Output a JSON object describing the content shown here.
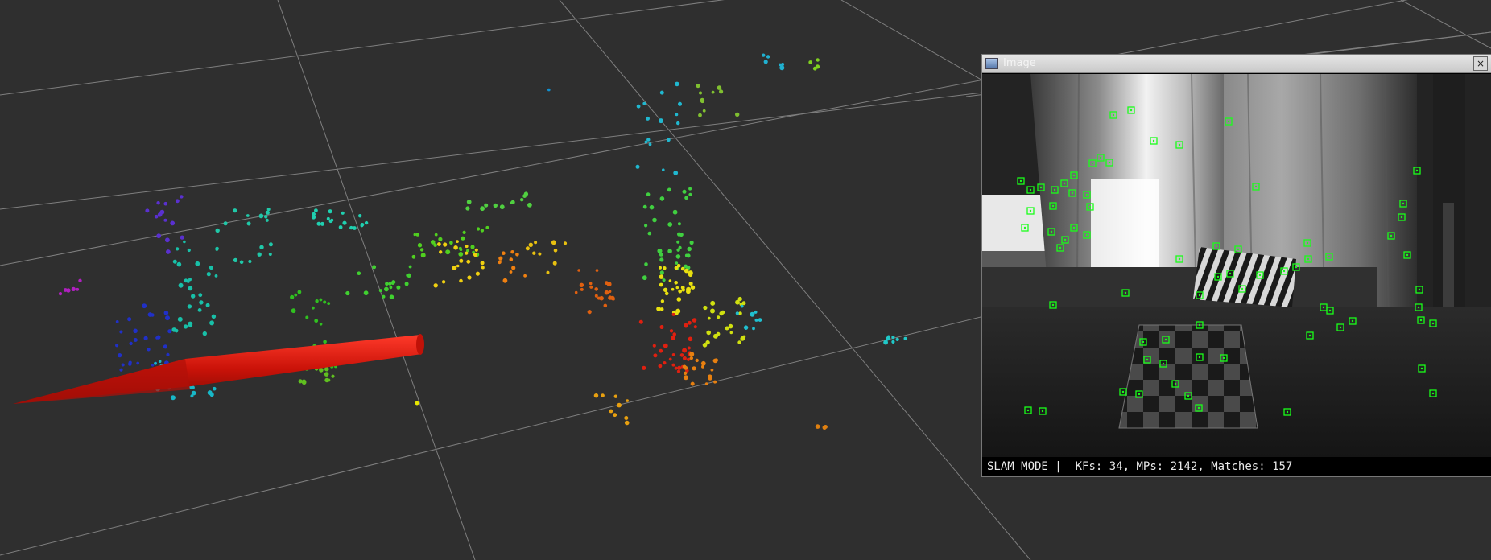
{
  "image_window": {
    "title": "Image",
    "close_label": "×",
    "icon": "window-image-icon"
  },
  "status": {
    "mode": "SLAM MODE",
    "separator": "|",
    "kfs_label": "KFs:",
    "kfs": "34",
    "mps_label": "MPs:",
    "mps": "2142",
    "matches_label": "Matches:",
    "matches": "157"
  },
  "colors": {
    "background": "#2f2f2f",
    "grid": "#9a9a9a",
    "pose_arrow": "#d81a10",
    "feature_box": "#19ff19"
  }
}
